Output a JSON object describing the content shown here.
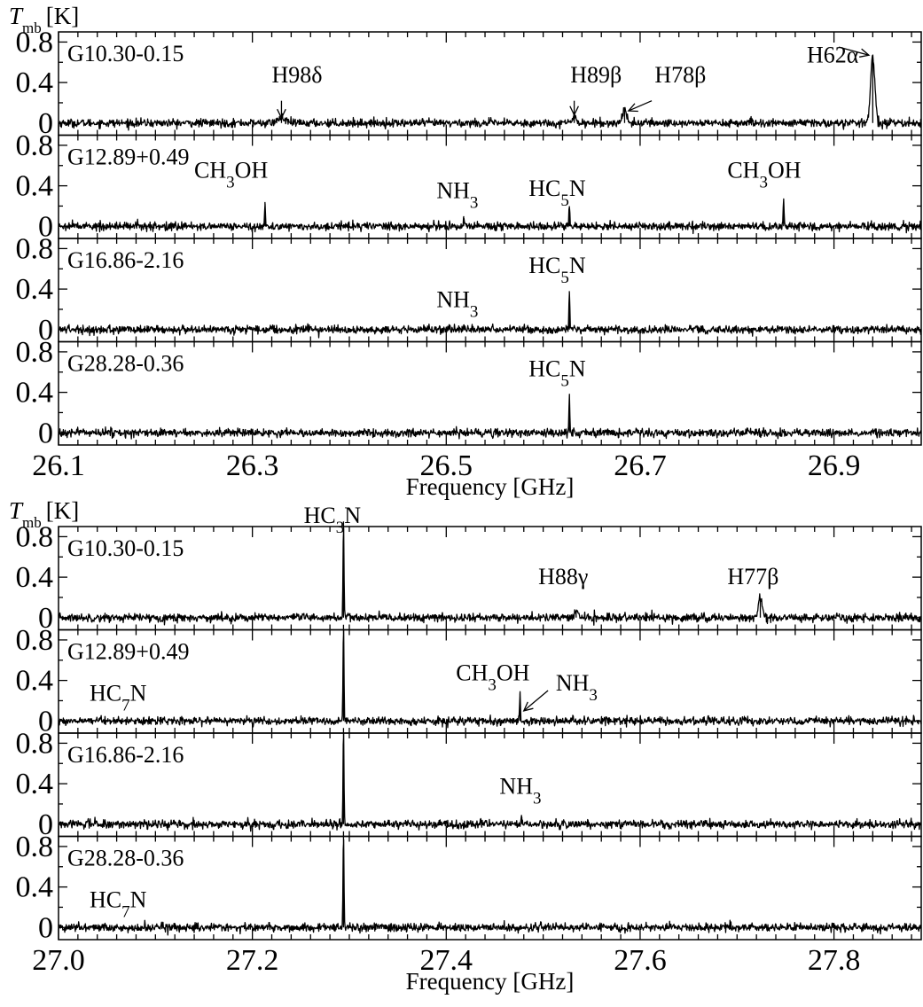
{
  "chart_data": [
    {
      "type": "line",
      "ylabel": "T_mb [K]",
      "ylabel_symbol": "T",
      "ylabel_sub": "mb",
      "ylabel_unit": "[K]",
      "xlabel": "Frequency [GHz]",
      "xlim": [
        26.1,
        26.99
      ],
      "x_ticks": [
        "26.1",
        "26.3",
        "26.5",
        "26.7",
        "26.9"
      ],
      "x_tick_values": [
        26.1,
        26.3,
        26.5,
        26.7,
        26.9
      ],
      "x_minor_step": 0.02,
      "ylim": [
        -0.12,
        0.9
      ],
      "y_ticks": [
        "0.8",
        "0.4",
        "0"
      ],
      "y_tick_values": [
        0.8,
        0.4,
        0
      ],
      "noise_rms": 0.02,
      "panels": [
        {
          "source": "G10.30-0.15",
          "lines": [
            {
              "freq": 26.33,
              "peak": 0.05,
              "width": 0.004
            },
            {
              "freq": 26.632,
              "peak": 0.08,
              "width": 0.002
            },
            {
              "freq": 26.684,
              "peak": 0.15,
              "width": 0.002
            },
            {
              "freq": 26.94,
              "peak": 0.66,
              "width": 0.0022
            }
          ],
          "labels": [
            {
              "text": "H98δ",
              "x": 26.32,
              "y": 0.4,
              "arrow": [
                26.33,
                0.22,
                26.33,
                0.05
              ]
            },
            {
              "text": "H89β",
              "x": 26.628,
              "y": 0.4,
              "arrow": [
                26.632,
                0.22,
                26.632,
                0.08
              ]
            },
            {
              "text": "H78β",
              "x": 26.715,
              "y": 0.4,
              "arrow": [
                26.712,
                0.22,
                26.688,
                0.12
              ]
            },
            {
              "text": "H62α",
              "x": 26.872,
              "y": 0.6,
              "arrow": [
                26.905,
                0.75,
                26.936,
                0.67
              ]
            }
          ]
        },
        {
          "source": "G12.89+0.49",
          "lines": [
            {
              "freq": 26.313,
              "peak": 0.24,
              "width": 0.0005
            },
            {
              "freq": 26.518,
              "peak": 0.1,
              "width": 0.0005
            },
            {
              "freq": 26.627,
              "peak": 0.2,
              "width": 0.0005
            },
            {
              "freq": 26.848,
              "peak": 0.26,
              "width": 0.0005
            }
          ],
          "labels": [
            {
              "text": "CH",
              "sub": "3",
              "text2": "OH",
              "x": 26.24,
              "y": 0.48
            },
            {
              "text": "NH",
              "sub": "3",
              "x": 26.49,
              "y": 0.28
            },
            {
              "text": "HC",
              "sub": "5",
              "text2": "N",
              "x": 26.585,
              "y": 0.3
            },
            {
              "text": "CH",
              "sub": "3",
              "text2": "OH",
              "x": 26.79,
              "y": 0.48
            }
          ]
        },
        {
          "source": "G16.86-2.16",
          "lines": [
            {
              "freq": 26.518,
              "peak": 0.05,
              "width": 0.0005
            },
            {
              "freq": 26.627,
              "peak": 0.38,
              "width": 0.0005
            }
          ],
          "labels": [
            {
              "text": "NH",
              "sub": "3",
              "x": 26.49,
              "y": 0.22
            },
            {
              "text": "HC",
              "sub": "5",
              "text2": "N",
              "x": 26.585,
              "y": 0.56
            }
          ]
        },
        {
          "source": "G28.28-0.36",
          "lines": [
            {
              "freq": 26.627,
              "peak": 0.36,
              "width": 0.0005
            }
          ],
          "labels": [
            {
              "text": "HC",
              "sub": "5",
              "text2": "N",
              "x": 26.585,
              "y": 0.56
            }
          ]
        }
      ]
    },
    {
      "type": "line",
      "ylabel": "T_mb [K]",
      "ylabel_symbol": "T",
      "ylabel_sub": "mb",
      "ylabel_unit": "[K]",
      "xlabel": "Frequency [GHz]",
      "xlim": [
        27.0,
        27.89
      ],
      "x_ticks": [
        "27.0",
        "27.2",
        "27.4",
        "27.6",
        "27.8"
      ],
      "x_tick_values": [
        27.0,
        27.2,
        27.4,
        27.6,
        27.8
      ],
      "x_minor_step": 0.02,
      "ylim": [
        -0.12,
        0.9
      ],
      "y_ticks": [
        "0.8",
        "0.4",
        "0"
      ],
      "y_tick_values": [
        0.8,
        0.4,
        0
      ],
      "noise_rms": 0.02,
      "panels": [
        {
          "source": "G10.30-0.15",
          "lines": [
            {
              "freq": 27.294,
              "peak": 0.95,
              "width": 0.0005
            },
            {
              "freq": 27.534,
              "peak": 0.07,
              "width": 0.002
            },
            {
              "freq": 27.724,
              "peak": 0.19,
              "width": 0.002
            }
          ],
          "labels": [
            {
              "text": "HC",
              "sub": "3",
              "text2": "N",
              "x": 27.253,
              "y": 1.0,
              "outside": true
            },
            {
              "text": "H88γ",
              "x": 27.495,
              "y": 0.33
            },
            {
              "text": "H77β",
              "x": 27.69,
              "y": 0.33
            }
          ]
        },
        {
          "source": "G12.89+0.49",
          "lines": [
            {
              "freq": 27.294,
              "peak": 0.95,
              "width": 0.0005
            },
            {
              "freq": 27.476,
              "peak": 0.27,
              "width": 0.0005
            }
          ],
          "labels": [
            {
              "text": "HC",
              "sub": "7",
              "text2": "N",
              "x": 27.032,
              "y": 0.2
            },
            {
              "text": "CH",
              "sub": "3",
              "text2": "OH",
              "x": 27.41,
              "y": 0.4
            },
            {
              "text": "NH",
              "sub": "3",
              "x": 27.513,
              "y": 0.3,
              "arrow": [
                27.505,
                0.3,
                27.48,
                0.1
              ]
            }
          ]
        },
        {
          "source": "G16.86-2.16",
          "lines": [
            {
              "freq": 27.294,
              "peak": 0.95,
              "width": 0.0005
            },
            {
              "freq": 27.478,
              "peak": 0.07,
              "width": 0.0008
            }
          ],
          "labels": [
            {
              "text": "NH",
              "sub": "3",
              "x": 27.455,
              "y": 0.3
            }
          ]
        },
        {
          "source": "G28.28-0.36",
          "lines": [
            {
              "freq": 27.294,
              "peak": 0.95,
              "width": 0.0005
            }
          ],
          "labels": [
            {
              "text": "HC",
              "sub": "7",
              "text2": "N",
              "x": 27.032,
              "y": 0.2
            }
          ]
        }
      ]
    }
  ]
}
